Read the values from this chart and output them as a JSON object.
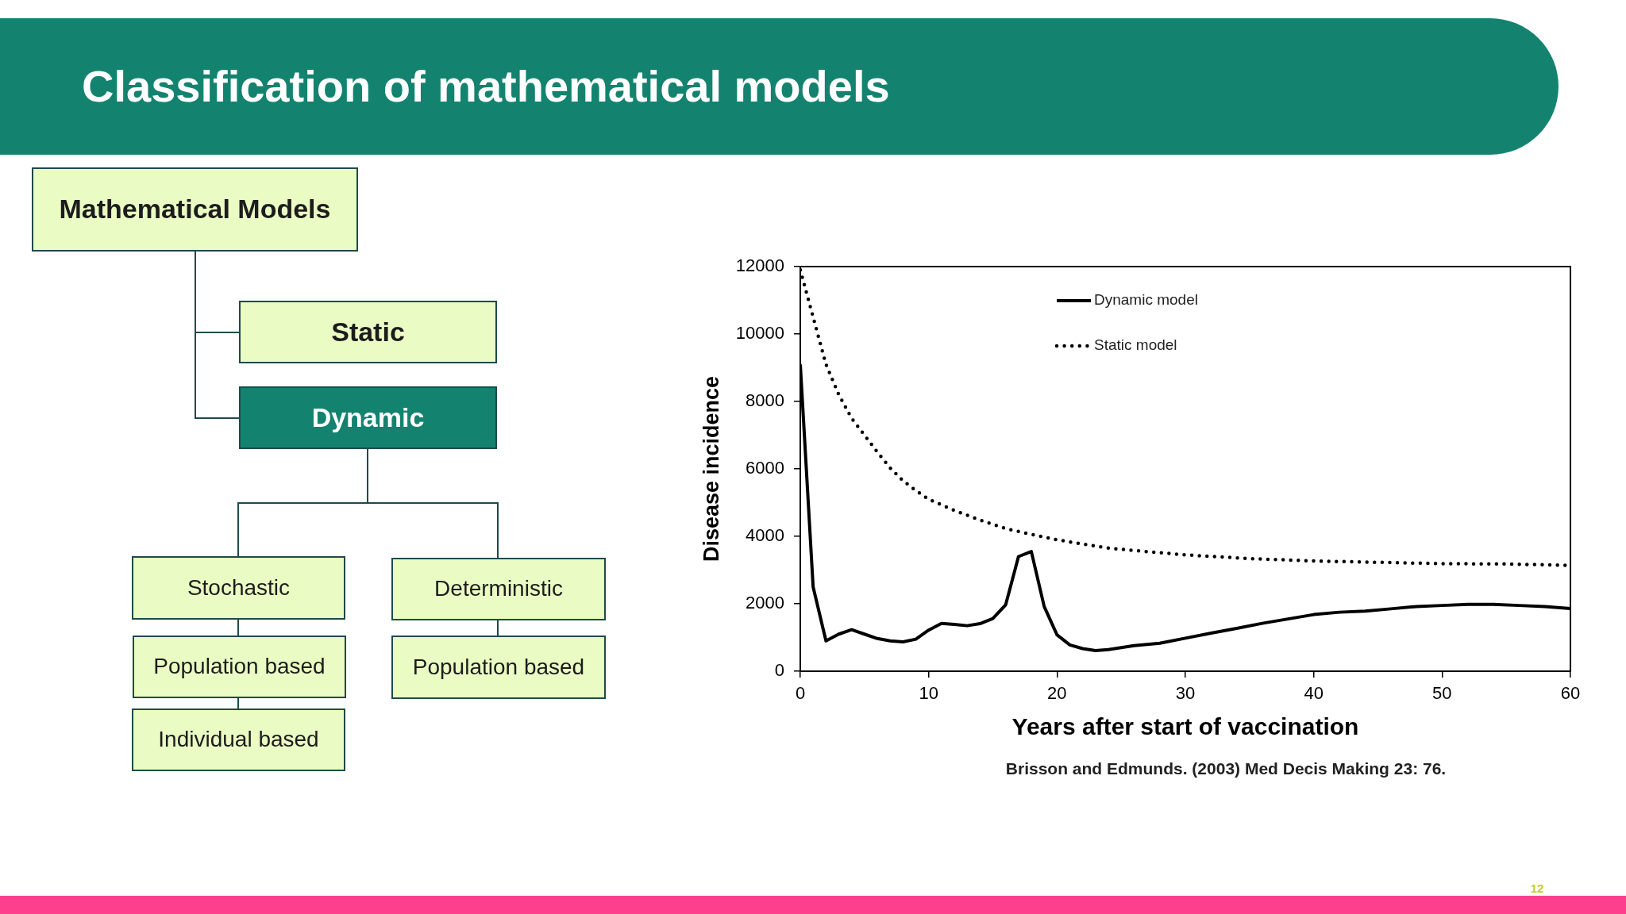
{
  "chart_data": [
    {
      "type": "other",
      "title": "Classification of mathematical models",
      "annotations": [
        "Mathematical Models",
        "Static",
        "Dynamic",
        "Stochastic",
        "Deterministic",
        "Population based",
        "Population based",
        "Individual based"
      ]
    },
    {
      "type": "line",
      "xlabel": "Years after start of vaccination",
      "ylabel": "Disease incidence",
      "xlim": [
        0,
        60
      ],
      "xticks": [
        0,
        10,
        20,
        30,
        40,
        50,
        60
      ],
      "ylim": [
        0,
        12000
      ],
      "yticks": [
        0,
        2000,
        4000,
        6000,
        8000,
        10000,
        12000
      ],
      "legend": "top",
      "marker": "none",
      "annotations": [
        "Brisson and Edmunds. (2003) Med Decis Making 23: 76.",
        "12"
      ],
      "series": [
        {
          "name": "Dynamic model",
          "color": "#000000",
          "line_style": "solid",
          "x": [
            0,
            1,
            2,
            3,
            4,
            5,
            6,
            7,
            8,
            9,
            10,
            11,
            12,
            13,
            14,
            15,
            16,
            17,
            18,
            19,
            20,
            21,
            22,
            23,
            24,
            25,
            26,
            28,
            30,
            32,
            34,
            36,
            38,
            40,
            42,
            44,
            46,
            48,
            50,
            52,
            54,
            56,
            58,
            60
          ],
          "values": [
            9100,
            2500,
            900,
            1100,
            1230,
            1100,
            970,
            900,
            870,
            950,
            1220,
            1420,
            1390,
            1350,
            1410,
            1560,
            1970,
            3400,
            3550,
            1920,
            1080,
            780,
            670,
            610,
            640,
            700,
            760,
            830,
            980,
            1130,
            1270,
            1420,
            1550,
            1680,
            1750,
            1780,
            1850,
            1920,
            1950,
            1980,
            1980,
            1950,
            1920,
            1860
          ]
        },
        {
          "name": "Static model",
          "color": "#000000",
          "line_style": "dotted",
          "x": [
            0,
            1,
            2,
            3,
            4,
            5,
            6,
            7,
            8,
            9,
            10,
            12,
            14,
            16,
            18,
            20,
            22,
            24,
            26,
            30,
            35,
            40,
            45,
            50,
            55,
            60
          ],
          "values": [
            11900,
            10500,
            9100,
            8200,
            7500,
            7000,
            6500,
            6030,
            5650,
            5360,
            5100,
            4770,
            4480,
            4230,
            4060,
            3900,
            3770,
            3650,
            3580,
            3450,
            3340,
            3270,
            3230,
            3190,
            3180,
            3140
          ]
        }
      ]
    }
  ]
}
